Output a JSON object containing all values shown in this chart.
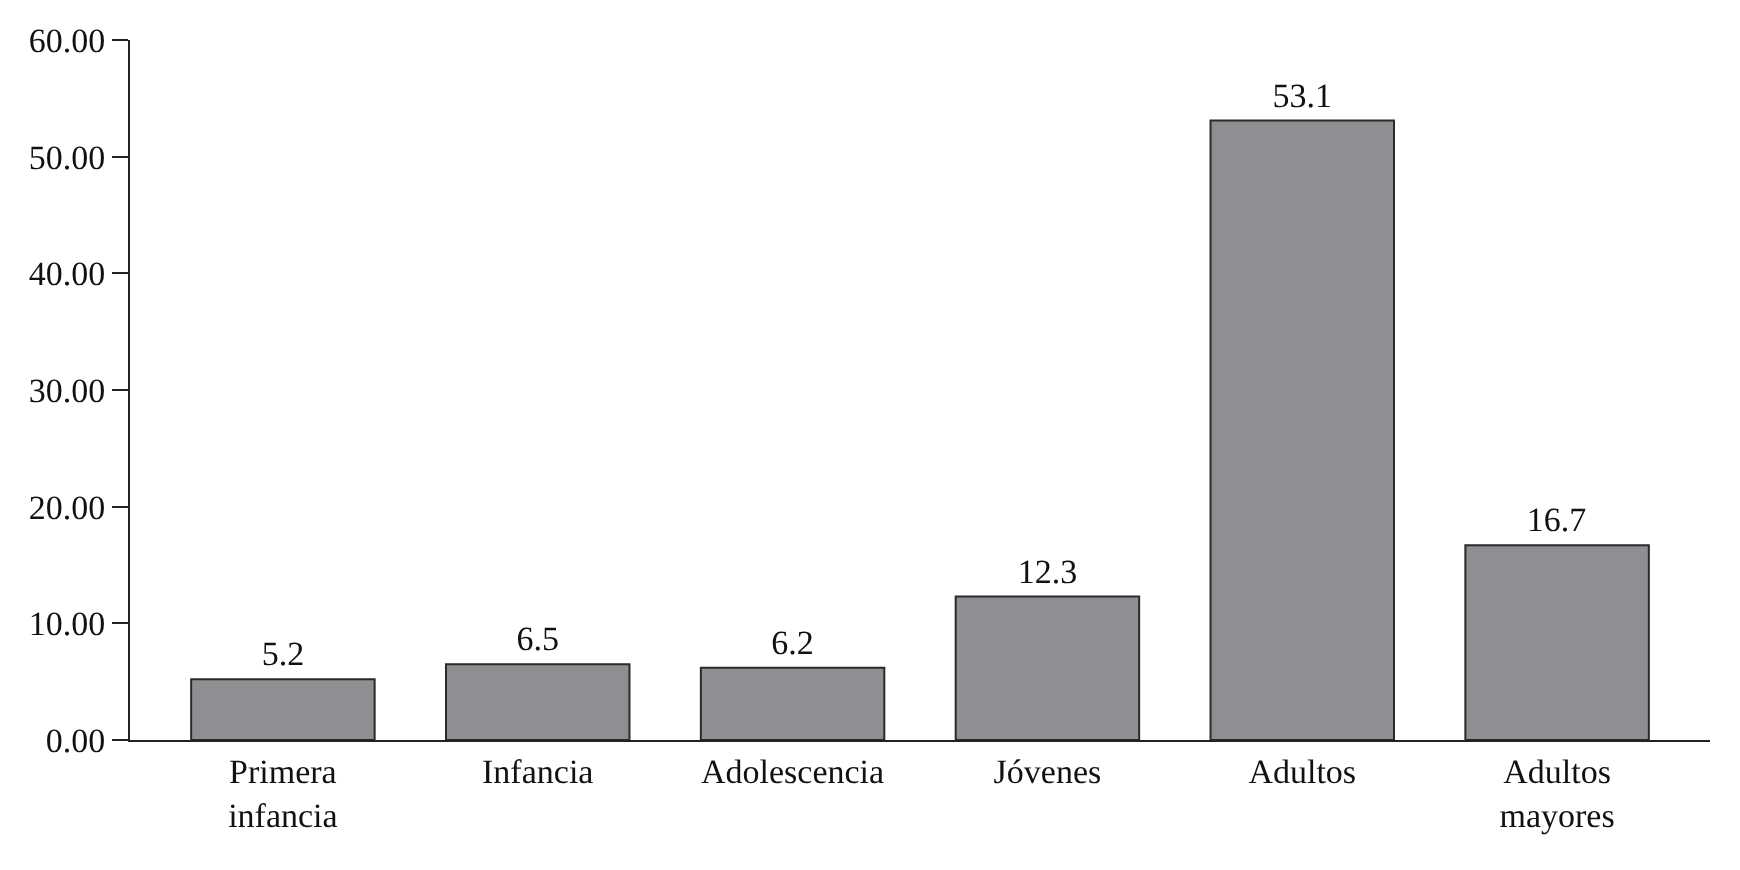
{
  "chart_data": {
    "type": "bar",
    "categories": [
      "Primera\ninfancia",
      "Infancia",
      "Adolescencia",
      "Jóvenes",
      "Adultos",
      "Adultos\nmayores"
    ],
    "values": [
      5.2,
      6.5,
      6.2,
      12.3,
      53.1,
      16.7
    ],
    "color": "#8e8e93",
    "data_labels": true,
    "ylim": [
      0,
      60
    ],
    "yticks": [
      {
        "value": 0,
        "label": "0.00"
      },
      {
        "value": 10,
        "label": "10.00"
      },
      {
        "value": 20,
        "label": "20.00"
      },
      {
        "value": 30,
        "label": "30.00"
      },
      {
        "value": 40,
        "label": "40.00"
      },
      {
        "value": 50,
        "label": "50.00"
      },
      {
        "value": 60,
        "label": "60.00"
      }
    ]
  }
}
